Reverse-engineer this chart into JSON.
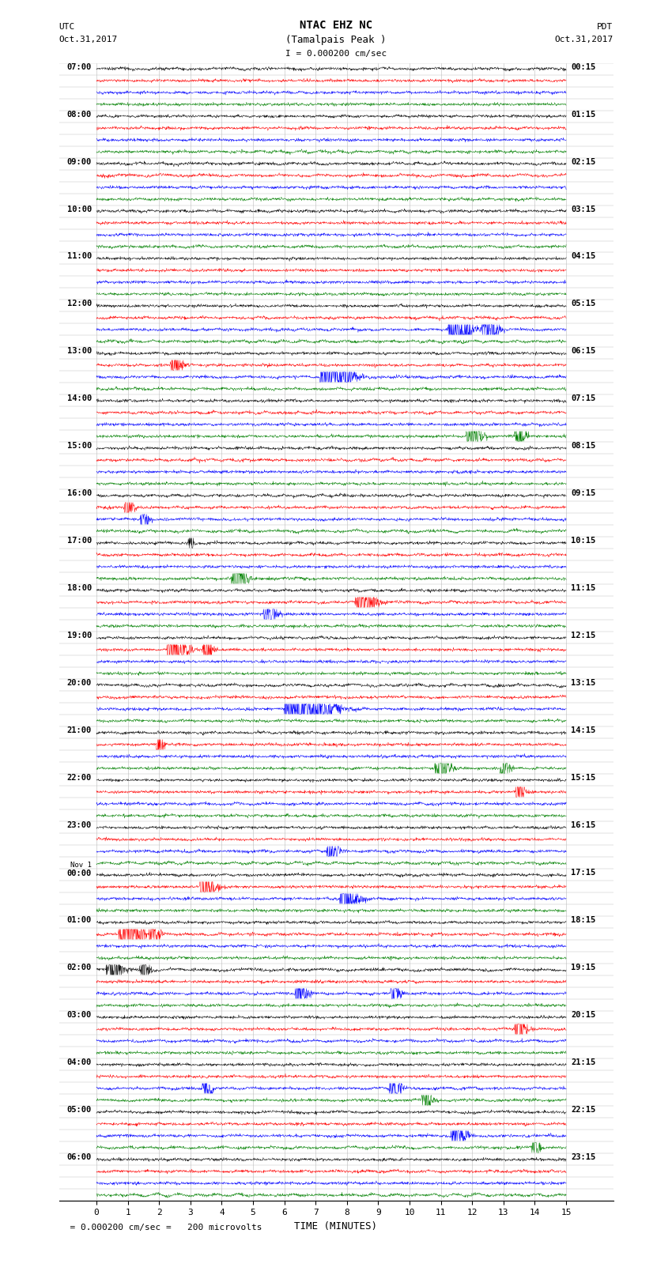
{
  "title_line1": "NTAC EHZ NC",
  "title_line2": "(Tamalpais Peak )",
  "title_scale": "I = 0.000200 cm/sec",
  "left_header_line1": "UTC",
  "left_header_line2": "Oct.31,2017",
  "right_header_line1": "PDT",
  "right_header_line2": "Oct.31,2017",
  "xlabel": "TIME (MINUTES)",
  "bottom_note": "  = 0.000200 cm/sec =   200 microvolts",
  "xmin": 0,
  "xmax": 15,
  "xticks": [
    0,
    1,
    2,
    3,
    4,
    5,
    6,
    7,
    8,
    9,
    10,
    11,
    12,
    13,
    14,
    15
  ],
  "background_color": "#ffffff",
  "trace_colors": [
    "black",
    "red",
    "blue",
    "green"
  ],
  "traces_per_hour": 4,
  "utc_hour_labels": [
    "07:00",
    "08:00",
    "09:00",
    "10:00",
    "11:00",
    "12:00",
    "13:00",
    "14:00",
    "15:00",
    "16:00",
    "17:00",
    "18:00",
    "19:00",
    "20:00",
    "21:00",
    "22:00",
    "23:00",
    "Nov 1\n00:00",
    "01:00",
    "02:00",
    "03:00",
    "04:00",
    "05:00",
    "06:00"
  ],
  "pdt_hour_labels": [
    "00:15",
    "01:15",
    "02:15",
    "03:15",
    "04:15",
    "05:15",
    "06:15",
    "07:15",
    "08:15",
    "09:15",
    "10:15",
    "11:15",
    "12:15",
    "13:15",
    "14:15",
    "15:15",
    "16:15",
    "17:15",
    "18:15",
    "19:15",
    "20:15",
    "21:15",
    "22:15",
    "23:15"
  ],
  "grid_color": "#bbbbbb",
  "vgrid_color": "#bbbbbb",
  "noise_scale": 0.06,
  "trace_lw": 0.35,
  "events": [
    {
      "hour": 5,
      "trace": 2,
      "minute": 11.5,
      "amp": 6.0,
      "dur": 1.2
    },
    {
      "hour": 5,
      "trace": 2,
      "minute": 12.5,
      "amp": 5.0,
      "dur": 0.8
    },
    {
      "hour": 6,
      "trace": 1,
      "minute": 2.5,
      "amp": 5.0,
      "dur": 0.6
    },
    {
      "hour": 6,
      "trace": 2,
      "minute": 7.5,
      "amp": 8.0,
      "dur": 1.5
    },
    {
      "hour": 7,
      "trace": 3,
      "minute": 12.0,
      "amp": 4.0,
      "dur": 0.8
    },
    {
      "hour": 7,
      "trace": 3,
      "minute": 13.5,
      "amp": 3.5,
      "dur": 0.6
    },
    {
      "hour": 9,
      "trace": 1,
      "minute": 1.0,
      "amp": 4.0,
      "dur": 0.5
    },
    {
      "hour": 9,
      "trace": 2,
      "minute": 1.5,
      "amp": 3.5,
      "dur": 0.4
    },
    {
      "hour": 10,
      "trace": 0,
      "minute": 3.0,
      "amp": 3.0,
      "dur": 0.3
    },
    {
      "hour": 10,
      "trace": 3,
      "minute": 4.5,
      "amp": 4.0,
      "dur": 0.8
    },
    {
      "hour": 11,
      "trace": 2,
      "minute": 5.5,
      "amp": 4.5,
      "dur": 0.7
    },
    {
      "hour": 11,
      "trace": 1,
      "minute": 8.5,
      "amp": 5.0,
      "dur": 1.0
    },
    {
      "hour": 12,
      "trace": 1,
      "minute": 2.5,
      "amp": 6.0,
      "dur": 1.0
    },
    {
      "hour": 12,
      "trace": 1,
      "minute": 3.5,
      "amp": 5.0,
      "dur": 0.5
    },
    {
      "hour": 13,
      "trace": 2,
      "minute": 6.5,
      "amp": 10.0,
      "dur": 2.0
    },
    {
      "hour": 14,
      "trace": 1,
      "minute": 2.0,
      "amp": 3.5,
      "dur": 0.4
    },
    {
      "hour": 14,
      "trace": 3,
      "minute": 11.0,
      "amp": 4.0,
      "dur": 0.8
    },
    {
      "hour": 14,
      "trace": 3,
      "minute": 13.0,
      "amp": 3.5,
      "dur": 0.5
    },
    {
      "hour": 15,
      "trace": 1,
      "minute": 13.5,
      "amp": 4.0,
      "dur": 0.5
    },
    {
      "hour": 16,
      "trace": 2,
      "minute": 7.5,
      "amp": 4.0,
      "dur": 0.6
    },
    {
      "hour": 17,
      "trace": 1,
      "minute": 3.5,
      "amp": 5.0,
      "dur": 0.8
    },
    {
      "hour": 17,
      "trace": 2,
      "minute": 8.0,
      "amp": 4.5,
      "dur": 1.0
    },
    {
      "hour": 18,
      "trace": 1,
      "minute": 1.0,
      "amp": 7.0,
      "dur": 1.2
    },
    {
      "hour": 18,
      "trace": 1,
      "minute": 1.8,
      "amp": 5.0,
      "dur": 0.5
    },
    {
      "hour": 19,
      "trace": 0,
      "minute": 0.5,
      "amp": 5.0,
      "dur": 0.8
    },
    {
      "hour": 19,
      "trace": 0,
      "minute": 1.5,
      "amp": 4.0,
      "dur": 0.5
    },
    {
      "hour": 19,
      "trace": 2,
      "minute": 6.5,
      "amp": 4.5,
      "dur": 0.6
    },
    {
      "hour": 19,
      "trace": 2,
      "minute": 9.5,
      "amp": 4.0,
      "dur": 0.5
    },
    {
      "hour": 20,
      "trace": 1,
      "minute": 13.5,
      "amp": 4.5,
      "dur": 0.6
    },
    {
      "hour": 21,
      "trace": 2,
      "minute": 3.5,
      "amp": 4.0,
      "dur": 0.5
    },
    {
      "hour": 21,
      "trace": 2,
      "minute": 9.5,
      "amp": 4.0,
      "dur": 0.6
    },
    {
      "hour": 21,
      "trace": 3,
      "minute": 10.5,
      "amp": 3.5,
      "dur": 0.5
    },
    {
      "hour": 22,
      "trace": 2,
      "minute": 11.5,
      "amp": 4.5,
      "dur": 0.8
    },
    {
      "hour": 22,
      "trace": 3,
      "minute": 14.0,
      "amp": 3.5,
      "dur": 0.4
    }
  ]
}
